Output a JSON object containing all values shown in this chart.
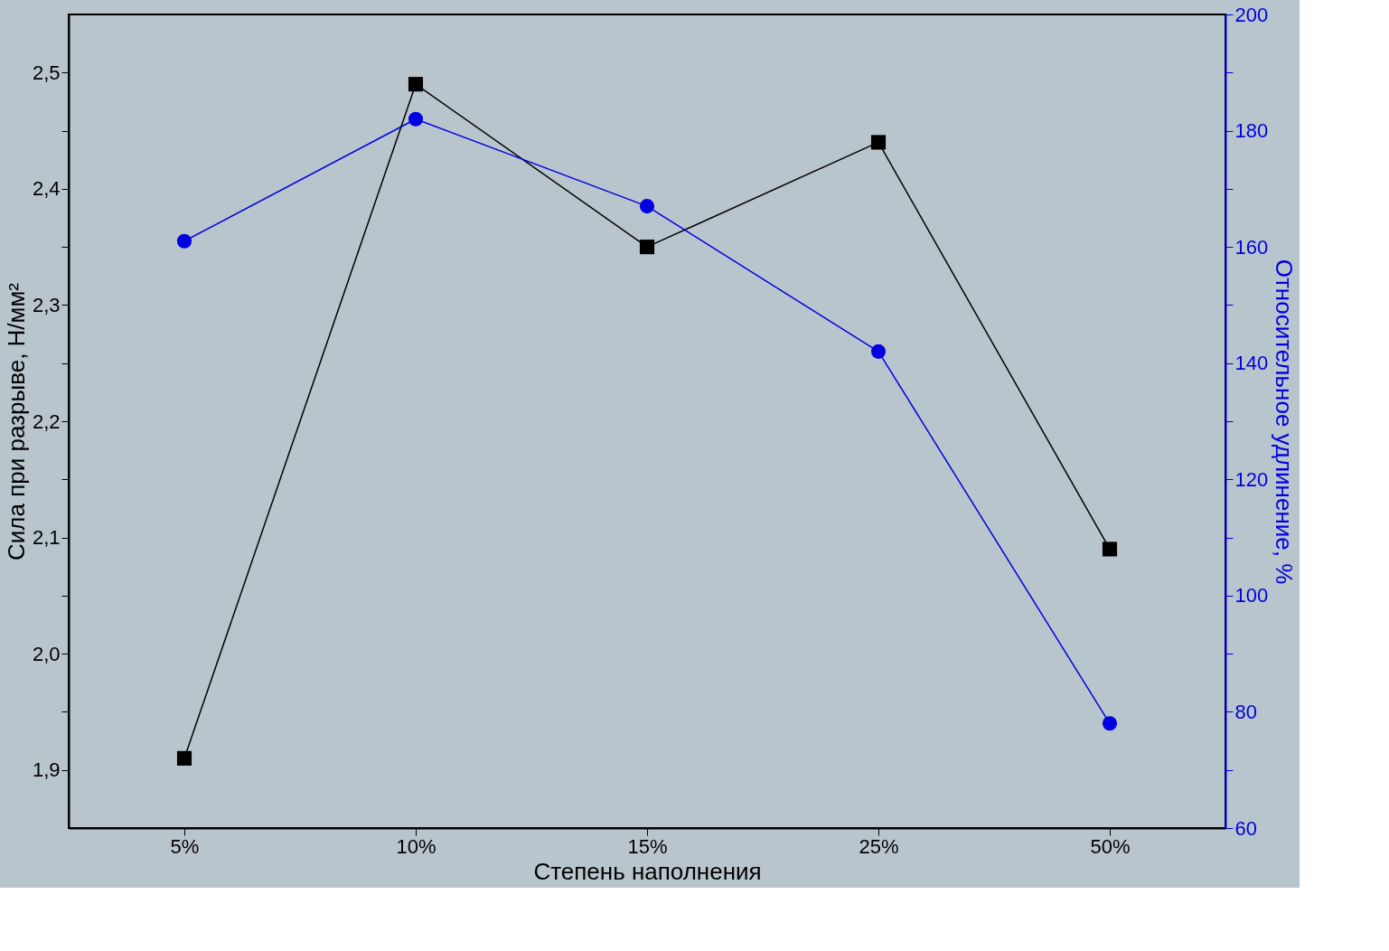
{
  "chart_data": {
    "type": "line",
    "xlabel": "Степень наполнения",
    "ylabel": "Сила при разрыве, Н/мм²",
    "y2label": "Относительное удлинение, %",
    "categories": [
      "5%",
      "10%",
      "15%",
      "25%",
      "50%"
    ],
    "series": [
      {
        "marker": "square",
        "line_style": "solid",
        "color": "#000000",
        "values": [
          1.91,
          2.49,
          2.35,
          2.44,
          2.09
        ]
      },
      {
        "marker": "circle",
        "line_style": "solid",
        "color": "#0000e0",
        "axis": "y2",
        "values": [
          161,
          182,
          167,
          142,
          78
        ]
      }
    ],
    "ylim": [
      1.85,
      2.55
    ],
    "yticks": [
      {
        "value": 1.9,
        "label": "1,9"
      },
      {
        "value": 1.95,
        "label": null
      },
      {
        "value": 2.0,
        "label": "2,0"
      },
      {
        "value": 2.05,
        "label": null
      },
      {
        "value": 2.1,
        "label": "2,1"
      },
      {
        "value": 2.15,
        "label": null
      },
      {
        "value": 2.2,
        "label": "2,2"
      },
      {
        "value": 2.25,
        "label": null
      },
      {
        "value": 2.3,
        "label": "2,3"
      },
      {
        "value": 2.35,
        "label": null
      },
      {
        "value": 2.4,
        "label": "2,4"
      },
      {
        "value": 2.45,
        "label": null
      },
      {
        "value": 2.5,
        "label": "2,5"
      }
    ],
    "y2lim": [
      60,
      200
    ],
    "y2ticks": [
      60,
      {
        "value": 70,
        "label": null
      },
      80,
      {
        "value": 90,
        "label": null
      },
      100,
      {
        "value": 110,
        "label": null
      },
      120,
      {
        "value": 130,
        "label": null
      },
      140,
      {
        "value": 150,
        "label": null
      },
      160,
      {
        "value": 170,
        "label": null
      },
      180,
      {
        "value": 190,
        "label": null
      },
      200
    ]
  }
}
